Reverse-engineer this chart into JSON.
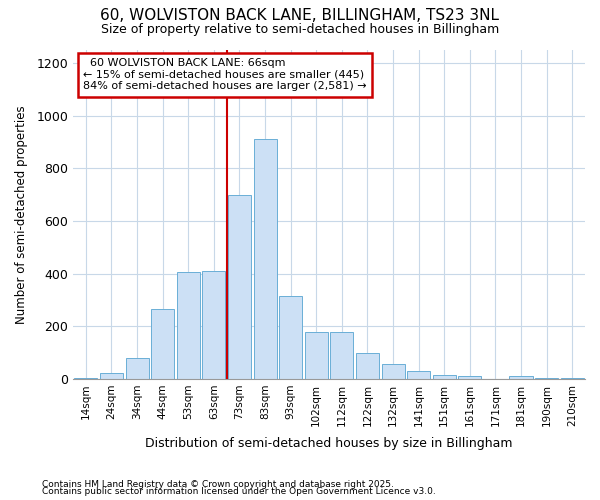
{
  "title1": "60, WOLVISTON BACK LANE, BILLINGHAM, TS23 3NL",
  "title2": "Size of property relative to semi-detached houses in Billingham",
  "xlabel": "Distribution of semi-detached houses by size in Billingham",
  "ylabel": "Number of semi-detached properties",
  "categories": [
    "14sqm",
    "24sqm",
    "34sqm",
    "44sqm",
    "53sqm",
    "63sqm",
    "73sqm",
    "83sqm",
    "93sqm",
    "102sqm",
    "112sqm",
    "122sqm",
    "132sqm",
    "141sqm",
    "151sqm",
    "161sqm",
    "171sqm",
    "181sqm",
    "190sqm",
    "210sqm"
  ],
  "values": [
    5,
    22,
    80,
    265,
    405,
    410,
    700,
    910,
    315,
    180,
    180,
    100,
    55,
    30,
    15,
    10,
    0,
    10,
    5,
    5
  ],
  "bar_color": "#cce0f5",
  "bar_edge_color": "#6aaed6",
  "property_label": "60 WOLVISTON BACK LANE: 66sqm",
  "pct_smaller": "15% of semi-detached houses are smaller (445)",
  "pct_larger": "84% of semi-detached houses are larger (2,581)",
  "vline_position": 5.5,
  "annotation_box_color": "#cc0000",
  "ylim": [
    0,
    1250
  ],
  "yticks": [
    0,
    200,
    400,
    600,
    800,
    1000,
    1200
  ],
  "footnote1": "Contains HM Land Registry data © Crown copyright and database right 2025.",
  "footnote2": "Contains public sector information licensed under the Open Government Licence v3.0.",
  "bg_color": "#ffffff",
  "grid_color": "#c8d8e8"
}
